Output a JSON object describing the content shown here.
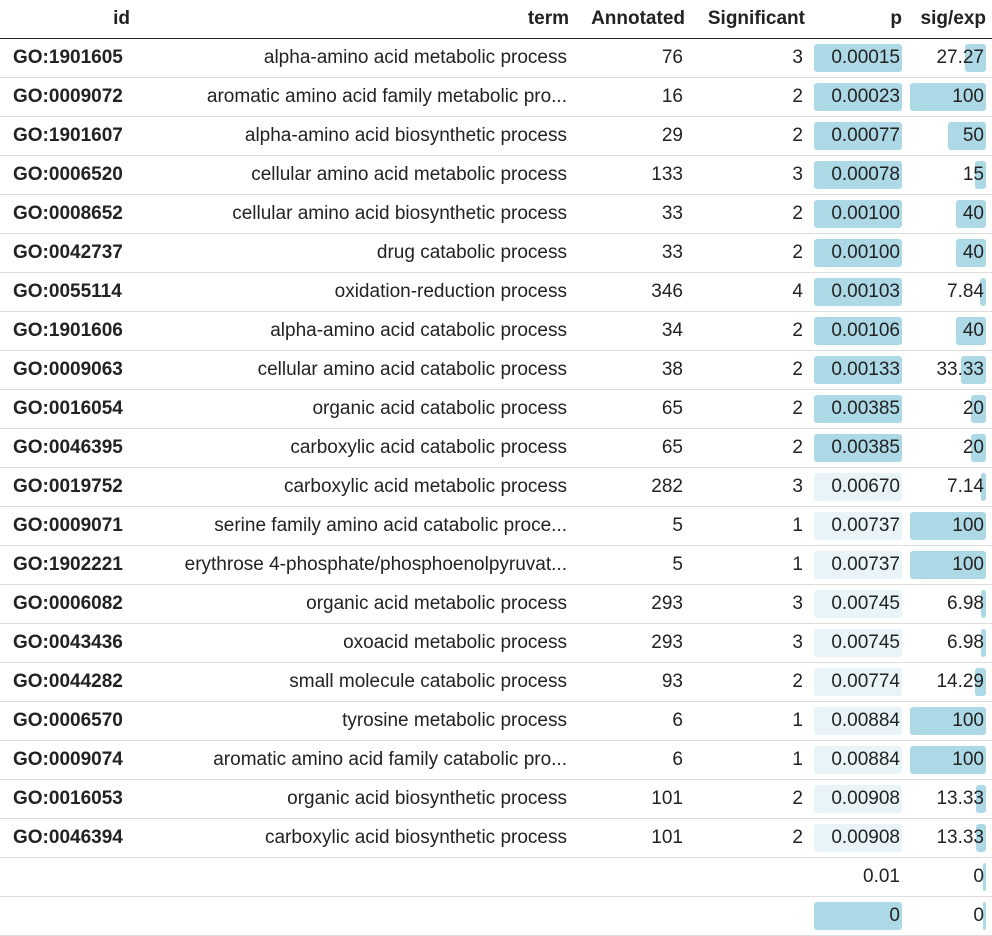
{
  "headers": {
    "id": "id",
    "term": "term",
    "annotated": "Annotated",
    "significant": "Significant",
    "p": "p",
    "sig_exp": "sig/exp"
  },
  "colors": {
    "bar_strong": "#add8e6",
    "bar_light": "#e8f4f8"
  },
  "rows": [
    {
      "id": "GO:1901605",
      "term": "alpha-amino acid metabolic process",
      "annotated": "76",
      "significant": "3",
      "p": "0.00015",
      "sig_exp": "27.27",
      "p_shade": "strong",
      "sig_exp_fill": 0.27
    },
    {
      "id": "GO:0009072",
      "term": "aromatic amino acid family metabolic pro...",
      "annotated": "16",
      "significant": "2",
      "p": "0.00023",
      "sig_exp": "100",
      "p_shade": "strong",
      "sig_exp_fill": 1.0
    },
    {
      "id": "GO:1901607",
      "term": "alpha-amino acid biosynthetic process",
      "annotated": "29",
      "significant": "2",
      "p": "0.00077",
      "sig_exp": "50",
      "p_shade": "strong",
      "sig_exp_fill": 0.5
    },
    {
      "id": "GO:0006520",
      "term": "cellular amino acid metabolic process",
      "annotated": "133",
      "significant": "3",
      "p": "0.00078",
      "sig_exp": "15",
      "p_shade": "strong",
      "sig_exp_fill": 0.15
    },
    {
      "id": "GO:0008652",
      "term": "cellular amino acid biosynthetic process",
      "annotated": "33",
      "significant": "2",
      "p": "0.00100",
      "sig_exp": "40",
      "p_shade": "strong",
      "sig_exp_fill": 0.4
    },
    {
      "id": "GO:0042737",
      "term": "drug catabolic process",
      "annotated": "33",
      "significant": "2",
      "p": "0.00100",
      "sig_exp": "40",
      "p_shade": "strong",
      "sig_exp_fill": 0.4
    },
    {
      "id": "GO:0055114",
      "term": "oxidation-reduction process",
      "annotated": "346",
      "significant": "4",
      "p": "0.00103",
      "sig_exp": "7.84",
      "p_shade": "strong",
      "sig_exp_fill": 0.08
    },
    {
      "id": "GO:1901606",
      "term": "alpha-amino acid catabolic process",
      "annotated": "34",
      "significant": "2",
      "p": "0.00106",
      "sig_exp": "40",
      "p_shade": "strong",
      "sig_exp_fill": 0.4
    },
    {
      "id": "GO:0009063",
      "term": "cellular amino acid catabolic process",
      "annotated": "38",
      "significant": "2",
      "p": "0.00133",
      "sig_exp": "33.33",
      "p_shade": "strong",
      "sig_exp_fill": 0.33
    },
    {
      "id": "GO:0016054",
      "term": "organic acid catabolic process",
      "annotated": "65",
      "significant": "2",
      "p": "0.00385",
      "sig_exp": "20",
      "p_shade": "strong",
      "sig_exp_fill": 0.2
    },
    {
      "id": "GO:0046395",
      "term": "carboxylic acid catabolic process",
      "annotated": "65",
      "significant": "2",
      "p": "0.00385",
      "sig_exp": "20",
      "p_shade": "strong",
      "sig_exp_fill": 0.2
    },
    {
      "id": "GO:0019752",
      "term": "carboxylic acid metabolic process",
      "annotated": "282",
      "significant": "3",
      "p": "0.00670",
      "sig_exp": "7.14",
      "p_shade": "light",
      "sig_exp_fill": 0.07
    },
    {
      "id": "GO:0009071",
      "term": "serine family amino acid catabolic proce...",
      "annotated": "5",
      "significant": "1",
      "p": "0.00737",
      "sig_exp": "100",
      "p_shade": "light",
      "sig_exp_fill": 1.0
    },
    {
      "id": "GO:1902221",
      "term": "erythrose 4-phosphate/phosphoenolpyruvat...",
      "annotated": "5",
      "significant": "1",
      "p": "0.00737",
      "sig_exp": "100",
      "p_shade": "light",
      "sig_exp_fill": 1.0
    },
    {
      "id": "GO:0006082",
      "term": "organic acid metabolic process",
      "annotated": "293",
      "significant": "3",
      "p": "0.00745",
      "sig_exp": "6.98",
      "p_shade": "light",
      "sig_exp_fill": 0.07
    },
    {
      "id": "GO:0043436",
      "term": "oxoacid metabolic process",
      "annotated": "293",
      "significant": "3",
      "p": "0.00745",
      "sig_exp": "6.98",
      "p_shade": "light",
      "sig_exp_fill": 0.07
    },
    {
      "id": "GO:0044282",
      "term": "small molecule catabolic process",
      "annotated": "93",
      "significant": "2",
      "p": "0.00774",
      "sig_exp": "14.29",
      "p_shade": "light",
      "sig_exp_fill": 0.14
    },
    {
      "id": "GO:0006570",
      "term": "tyrosine metabolic process",
      "annotated": "6",
      "significant": "1",
      "p": "0.00884",
      "sig_exp": "100",
      "p_shade": "light",
      "sig_exp_fill": 1.0
    },
    {
      "id": "GO:0009074",
      "term": "aromatic amino acid family catabolic pro...",
      "annotated": "6",
      "significant": "1",
      "p": "0.00884",
      "sig_exp": "100",
      "p_shade": "light",
      "sig_exp_fill": 1.0
    },
    {
      "id": "GO:0016053",
      "term": "organic acid biosynthetic process",
      "annotated": "101",
      "significant": "2",
      "p": "0.00908",
      "sig_exp": "13.33",
      "p_shade": "light",
      "sig_exp_fill": 0.13
    },
    {
      "id": "GO:0046394",
      "term": "carboxylic acid biosynthetic process",
      "annotated": "101",
      "significant": "2",
      "p": "0.00908",
      "sig_exp": "13.33",
      "p_shade": "light",
      "sig_exp_fill": 0.13
    },
    {
      "id": "",
      "term": "",
      "annotated": "",
      "significant": "",
      "p": "0.01",
      "sig_exp": "0",
      "p_shade": "none",
      "sig_exp_fill": 0.0
    },
    {
      "id": "",
      "term": "",
      "annotated": "",
      "significant": "",
      "p": "0",
      "sig_exp": "0",
      "p_shade": "strong",
      "sig_exp_fill": 0.0
    }
  ]
}
